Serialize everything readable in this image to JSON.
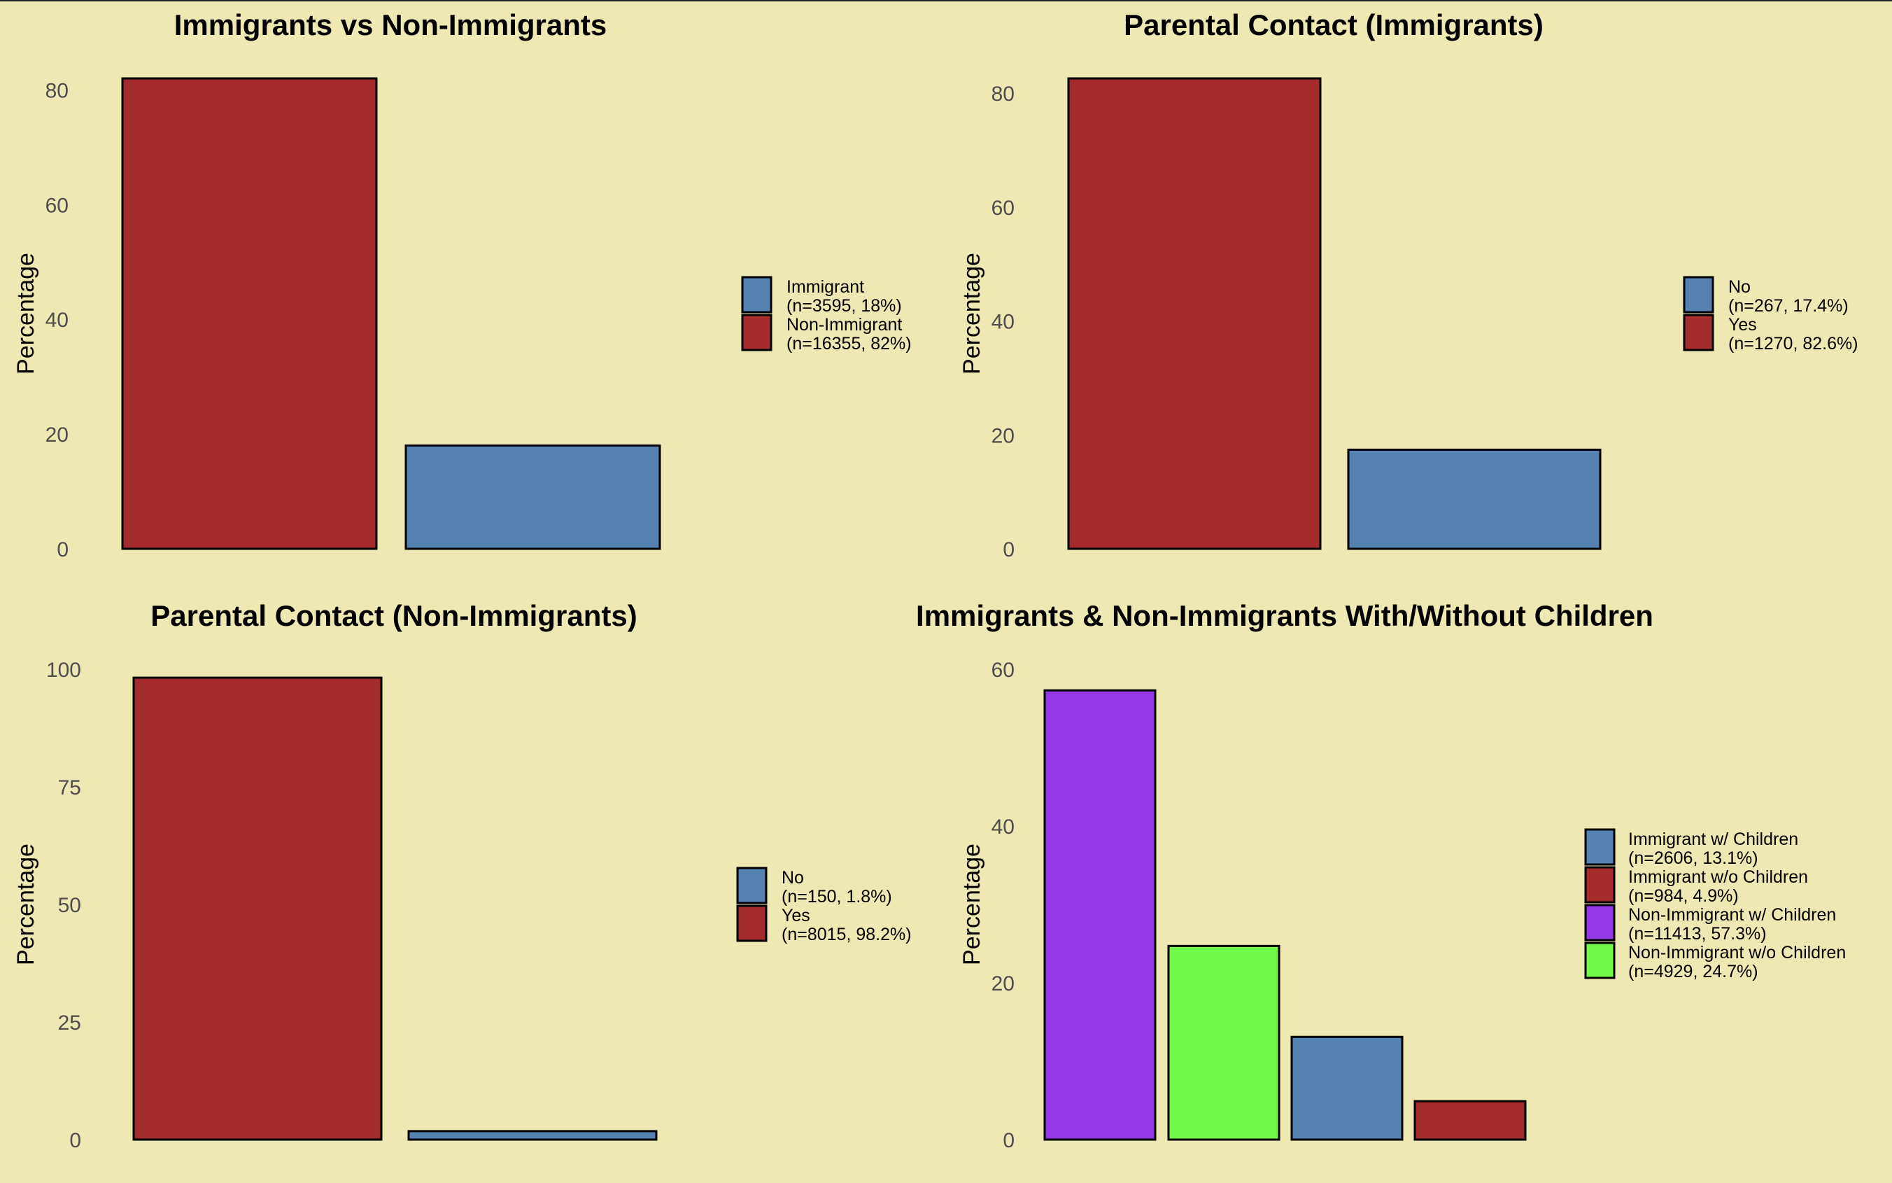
{
  "chart_data": [
    {
      "type": "bar",
      "title": "Immigrants vs Non-Immigrants",
      "ylabel": "Percentage",
      "xlabel": "",
      "ylim": [
        0,
        82
      ],
      "yticks": [
        "0",
        "20",
        "40",
        "60",
        "80"
      ],
      "grid": false,
      "legend_position": "right",
      "categories": [
        "Non-Immigrant",
        "Immigrant"
      ],
      "values": [
        82,
        18
      ],
      "bar_colors": [
        "#A42D2B",
        "#5581B3"
      ],
      "legend": [
        {
          "label": "Immigrant",
          "detail": "(n=3595, 18%)",
          "color": "#5581B3"
        },
        {
          "label": "Non-Immigrant",
          "detail": "(n=16355, 82%)",
          "color": "#A42D2B"
        }
      ]
    },
    {
      "type": "bar",
      "title": "Parental Contact (Immigrants)",
      "ylabel": "Percentage",
      "xlabel": "",
      "ylim": [
        0,
        82.6
      ],
      "yticks": [
        "0",
        "20",
        "40",
        "60",
        "80"
      ],
      "grid": false,
      "legend_position": "right",
      "categories": [
        "Yes",
        "No"
      ],
      "values": [
        82.6,
        17.4
      ],
      "bar_colors": [
        "#A42D2B",
        "#5581B3"
      ],
      "legend": [
        {
          "label": "No",
          "detail": "(n=267, 17.4%)",
          "color": "#5581B3"
        },
        {
          "label": "Yes",
          "detail": "(n=1270, 82.6%)",
          "color": "#A42D2B"
        }
      ]
    },
    {
      "type": "bar",
      "title": "Parental Contact (Non-Immigrants)",
      "ylabel": "Percentage",
      "xlabel": "",
      "ylim": [
        0,
        100
      ],
      "yticks": [
        "0",
        "25",
        "50",
        "75",
        "100"
      ],
      "grid": false,
      "legend_position": "right",
      "categories": [
        "Yes",
        "No"
      ],
      "values": [
        98.2,
        1.8
      ],
      "bar_colors": [
        "#A42D2B",
        "#5581B3"
      ],
      "legend": [
        {
          "label": "No",
          "detail": "(n=150, 1.8%)",
          "color": "#5581B3"
        },
        {
          "label": "Yes",
          "detail": "(n=8015, 98.2%)",
          "color": "#A42D2B"
        }
      ]
    },
    {
      "type": "bar",
      "title": "Immigrants & Non-Immigrants With/Without Children",
      "ylabel": "Percentage",
      "xlabel": "",
      "ylim": [
        0,
        60
      ],
      "yticks": [
        "0",
        "20",
        "40",
        "60"
      ],
      "grid": false,
      "legend_position": "right",
      "categories": [
        "Non-Immigrant w/ Children",
        "Non-Immigrant w/o Children",
        "Immigrant w/ Children",
        "Immigrant w/o Children"
      ],
      "values": [
        57.3,
        24.7,
        13.1,
        4.9
      ],
      "bar_colors": [
        "#9439E8",
        "#70F84A",
        "#5581B3",
        "#A42D2B"
      ],
      "legend": [
        {
          "label": "Immigrant w/ Children",
          "detail": "(n=2606, 13.1%)",
          "color": "#5581B3"
        },
        {
          "label": "Immigrant w/o Children",
          "detail": "(n=984, 4.9%)",
          "color": "#A42D2B"
        },
        {
          "label": "Non-Immigrant w/ Children",
          "detail": "(n=11413, 57.3%)",
          "color": "#9439E8"
        },
        {
          "label": "Non-Immigrant w/o Children",
          "detail": "(n=4929, 24.7%)",
          "color": "#70F84A"
        }
      ]
    }
  ]
}
